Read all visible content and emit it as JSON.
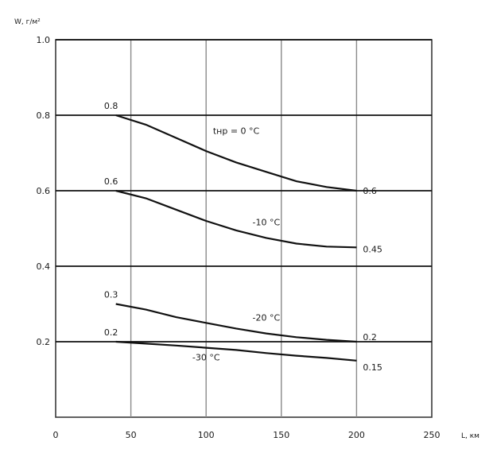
{
  "chart_data": {
    "type": "line",
    "ylabel": "W, г/м²",
    "xlabel": "L, км",
    "xlim": [
      0,
      250
    ],
    "ylim": [
      0,
      1.0
    ],
    "x_ticks": [
      "0",
      "50",
      "100",
      "150",
      "200",
      "250"
    ],
    "y_ticks": [
      "0.2",
      "0.4",
      "0.6",
      "0.8",
      "1.0"
    ],
    "y_tick_values": [
      0.2,
      0.4,
      0.6,
      0.8,
      1.0
    ],
    "x_tick_values": [
      0,
      50,
      100,
      150,
      200,
      250
    ],
    "grid": true,
    "series": [
      {
        "name": "tнр = 0 °C",
        "x": [
          40,
          60,
          80,
          100,
          120,
          140,
          160,
          180,
          200
        ],
        "y": [
          0.8,
          0.775,
          0.74,
          0.705,
          0.675,
          0.65,
          0.625,
          0.61,
          0.6
        ],
        "start_label": "0.8",
        "end_label": "0.6"
      },
      {
        "name": "-10 °C",
        "x": [
          40,
          60,
          80,
          100,
          120,
          140,
          160,
          180,
          200
        ],
        "y": [
          0.6,
          0.58,
          0.55,
          0.52,
          0.495,
          0.475,
          0.46,
          0.452,
          0.45
        ],
        "start_label": "0.6",
        "end_label": "0.45"
      },
      {
        "name": "-20 °C",
        "x": [
          40,
          60,
          80,
          100,
          120,
          140,
          160,
          180,
          200
        ],
        "y": [
          0.3,
          0.285,
          0.265,
          0.25,
          0.235,
          0.222,
          0.212,
          0.205,
          0.2
        ],
        "start_label": "0.3",
        "end_label": "0.2"
      },
      {
        "name": "-30 °C",
        "x": [
          40,
          60,
          80,
          100,
          120,
          140,
          160,
          180,
          200
        ],
        "y": [
          0.2,
          0.195,
          0.19,
          0.184,
          0.178,
          0.17,
          0.163,
          0.157,
          0.15
        ],
        "start_label": "0.2",
        "end_label": "0.15"
      }
    ]
  }
}
